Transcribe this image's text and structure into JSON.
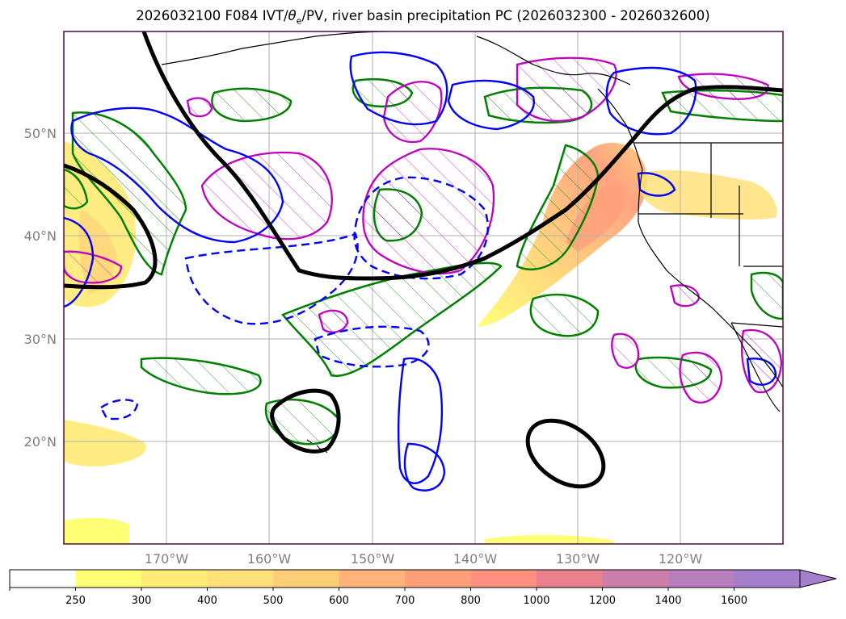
{
  "title": {
    "prefix": "2026032100 F084 IVT/",
    "theta": "θ",
    "theta_sub": "e",
    "suffix": "/PV, river basin precipitation PC (2026032300 - 2026032600)"
  },
  "map": {
    "lon_range": [
      -180,
      -110
    ],
    "lat_range": [
      10,
      60
    ],
    "lat_ticks": [
      {
        "lat": 50,
        "label": "50°N"
      },
      {
        "lat": 40,
        "label": "40°N"
      },
      {
        "lat": 30,
        "label": "30°N"
      },
      {
        "lat": 20,
        "label": "20°N"
      }
    ],
    "lon_ticks": [
      {
        "lon": -170,
        "label": "170°W"
      },
      {
        "lon": -160,
        "label": "160°W"
      },
      {
        "lon": -150,
        "label": "150°W"
      },
      {
        "lon": -140,
        "label": "140°W"
      },
      {
        "lon": -130,
        "label": "130°W"
      },
      {
        "lon": -120,
        "label": "120°W"
      }
    ],
    "gridlines": true,
    "colors": {
      "pv_contour": "#000000",
      "positive_contour": "#0000ff",
      "green_hatched": "#008000",
      "magenta_hatched": "#c000c0",
      "land_outline": "#000000",
      "gridline": "#b0b0b0",
      "frame": "#4b0f3f"
    }
  },
  "colorbar": {
    "levels": [
      250,
      300,
      400,
      500,
      600,
      700,
      800,
      1000,
      1200,
      1400,
      1600
    ],
    "colors": [
      "#ffffff",
      "#ffff75",
      "#ffeb75",
      "#ffe07a",
      "#ffcc78",
      "#ffb27a",
      "#ff9f7a",
      "#ff8f7e",
      "#e8808e",
      "#cc7fa8",
      "#b87fbf",
      "#a47fcc"
    ],
    "extend": "max"
  }
}
